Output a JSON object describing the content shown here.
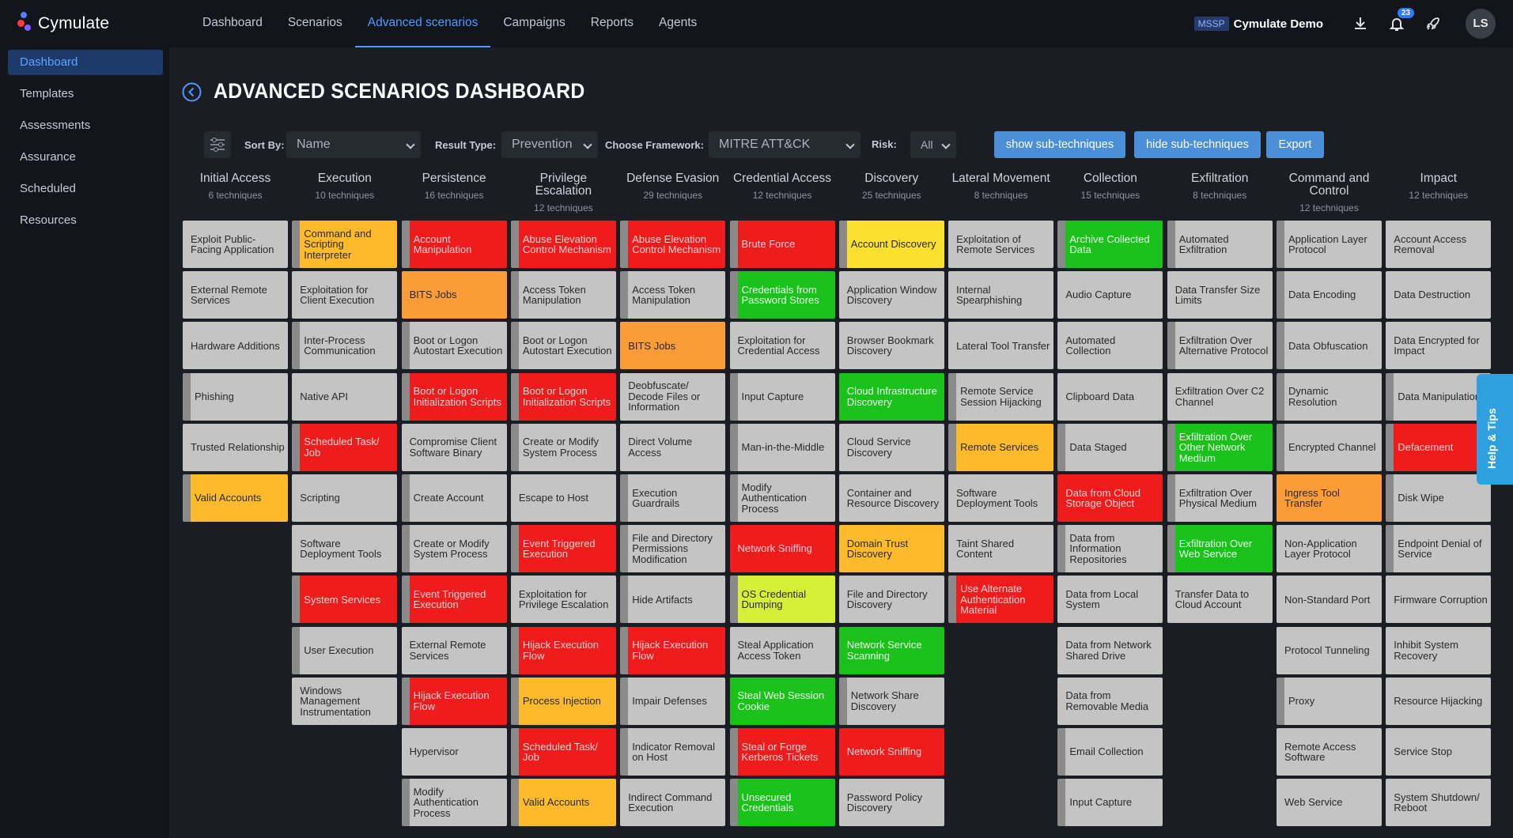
{
  "app": {
    "logo_text": "Cymulate"
  },
  "nav": [
    "Dashboard",
    "Scenarios",
    "Advanced scenarios",
    "Campaigns",
    "Reports",
    "Agents"
  ],
  "nav_active": 2,
  "header": {
    "mssp": "MSSP",
    "account": "Cymulate Demo",
    "notifications": "23",
    "avatar": "LS"
  },
  "sidebar": [
    "Dashboard",
    "Templates",
    "Assessments",
    "Assurance",
    "Scheduled",
    "Resources"
  ],
  "page": {
    "title": "ADVANCED SCENARIOS DASHBOARD"
  },
  "filters": {
    "sort_label": "Sort By:",
    "sort_value": "Name",
    "result_label": "Result Type:",
    "result_value": "Prevention",
    "framework_label": "Choose Framework:",
    "framework_value": "MITRE ATT&CK",
    "risk_label": "Risk:",
    "risk_value": "All",
    "show_sub": "show sub-techniques",
    "hide_sub": "hide sub-techniques",
    "export": "Export"
  },
  "help_tab": "Help & Tips",
  "colors": {
    "red": "#ee1c1c",
    "orange": "#fb9c38",
    "amber": "#fdbb2c",
    "yellow": "#fbe02f",
    "lime": "#d6f03a",
    "green": "#1cc21c",
    "gray": "#c4c4c4",
    "accent": "#4f9bff"
  },
  "columns": [
    {
      "name": "Initial Access",
      "count": "6 techniques",
      "cells": [
        {
          "t": "Exploit Public-Facing Application",
          "c": "gray"
        },
        {
          "t": "External Remote Services",
          "c": "gray"
        },
        {
          "t": "Hardware Additions",
          "c": "gray"
        },
        {
          "t": "Phishing",
          "c": "gray",
          "s": 1
        },
        {
          "t": "Trusted Relationship",
          "c": "gray"
        },
        {
          "t": "Valid Accounts",
          "c": "amber",
          "s": 1
        }
      ]
    },
    {
      "name": "Execution",
      "count": "10 techniques",
      "cells": [
        {
          "t": "Command and Scripting Interpreter",
          "c": "amber",
          "s": 1
        },
        {
          "t": "Exploitation for Client Execution",
          "c": "gray"
        },
        {
          "t": "Inter-Process Communication",
          "c": "gray",
          "s": 1
        },
        {
          "t": "Native API",
          "c": "gray"
        },
        {
          "t": "Scheduled Task/ Job",
          "c": "red",
          "s": 1
        },
        {
          "t": "Scripting",
          "c": "gray"
        },
        {
          "t": "Software Deployment Tools",
          "c": "gray"
        },
        {
          "t": "System Services",
          "c": "red",
          "s": 1
        },
        {
          "t": "User Execution",
          "c": "gray",
          "s": 1
        },
        {
          "t": "Windows Management Instrumentation",
          "c": "gray"
        }
      ]
    },
    {
      "name": "Persistence",
      "count": "16 techniques",
      "cells": [
        {
          "t": "Account Manipulation",
          "c": "red",
          "s": 1
        },
        {
          "t": "BITS Jobs",
          "c": "orange"
        },
        {
          "t": "Boot or Logon Autostart Execution",
          "c": "gray",
          "s": 1
        },
        {
          "t": "Boot or Logon Initialization Scripts",
          "c": "red",
          "s": 1
        },
        {
          "t": "Compromise Client Software Binary",
          "c": "gray"
        },
        {
          "t": "Create Account",
          "c": "gray",
          "s": 1
        },
        {
          "t": "Create or Modify System Process",
          "c": "gray",
          "s": 1
        },
        {
          "t": "Event Triggered Execution",
          "c": "red",
          "s": 1
        },
        {
          "t": "External Remote Services",
          "c": "gray"
        },
        {
          "t": "Hijack Execution Flow",
          "c": "red",
          "s": 1
        },
        {
          "t": "Hypervisor",
          "c": "gray"
        },
        {
          "t": "Modify Authentication Process",
          "c": "gray",
          "s": 1
        }
      ]
    },
    {
      "name": "Privilege Escalation",
      "count": "12 techniques",
      "cells": [
        {
          "t": "Abuse Elevation Control Mechanism",
          "c": "red",
          "s": 1
        },
        {
          "t": "Access Token Manipulation",
          "c": "gray",
          "s": 1
        },
        {
          "t": "Boot or Logon Autostart Execution",
          "c": "gray",
          "s": 1
        },
        {
          "t": "Boot or Logon Initialization Scripts",
          "c": "red",
          "s": 1
        },
        {
          "t": "Create or Modify System Process",
          "c": "gray",
          "s": 1
        },
        {
          "t": "Escape to Host",
          "c": "gray"
        },
        {
          "t": "Event Triggered Execution",
          "c": "red",
          "s": 1
        },
        {
          "t": "Exploitation for Privilege Escalation",
          "c": "gray"
        },
        {
          "t": "Hijack Execution Flow",
          "c": "red",
          "s": 1
        },
        {
          "t": "Process Injection",
          "c": "amber",
          "s": 1
        },
        {
          "t": "Scheduled Task/ Job",
          "c": "red",
          "s": 1
        },
        {
          "t": "Valid Accounts",
          "c": "amber",
          "s": 1
        }
      ]
    },
    {
      "name": "Defense Evasion",
      "count": "29 techniques",
      "cells": [
        {
          "t": "Abuse Elevation Control Mechanism",
          "c": "red",
          "s": 1
        },
        {
          "t": "Access Token Manipulation",
          "c": "gray",
          "s": 1
        },
        {
          "t": "BITS Jobs",
          "c": "orange"
        },
        {
          "t": "Deobfuscate/ Decode Files or Information",
          "c": "gray"
        },
        {
          "t": "Direct Volume Access",
          "c": "gray"
        },
        {
          "t": "Execution Guardrails",
          "c": "gray",
          "s": 1
        },
        {
          "t": "File and Directory Permissions Modification",
          "c": "gray",
          "s": 1
        },
        {
          "t": "Hide Artifacts",
          "c": "gray",
          "s": 1
        },
        {
          "t": "Hijack Execution Flow",
          "c": "red",
          "s": 1
        },
        {
          "t": "Impair Defenses",
          "c": "gray",
          "s": 1
        },
        {
          "t": "Indicator Removal on Host",
          "c": "gray",
          "s": 1
        },
        {
          "t": "Indirect Command Execution",
          "c": "gray"
        }
      ]
    },
    {
      "name": "Credential Access",
      "count": "12 techniques",
      "cells": [
        {
          "t": "Brute Force",
          "c": "red",
          "s": 1
        },
        {
          "t": "Credentials from Password Stores",
          "c": "green",
          "s": 1
        },
        {
          "t": "Exploitation for Credential Access",
          "c": "gray"
        },
        {
          "t": "Input Capture",
          "c": "gray",
          "s": 1
        },
        {
          "t": "Man-in-the-Middle",
          "c": "gray",
          "s": 1
        },
        {
          "t": "Modify Authentication Process",
          "c": "gray",
          "s": 1
        },
        {
          "t": "Network Sniffing",
          "c": "red"
        },
        {
          "t": "OS Credential Dumping",
          "c": "lime",
          "s": 1
        },
        {
          "t": "Steal Application Access Token",
          "c": "gray"
        },
        {
          "t": "Steal Web Session Cookie",
          "c": "green"
        },
        {
          "t": "Steal or Forge Kerberos Tickets",
          "c": "red",
          "s": 1
        },
        {
          "t": "Unsecured Credentials",
          "c": "green",
          "s": 1
        }
      ]
    },
    {
      "name": "Discovery",
      "count": "25 techniques",
      "cells": [
        {
          "t": "Account Discovery",
          "c": "yellow",
          "s": 1
        },
        {
          "t": "Application Window Discovery",
          "c": "gray"
        },
        {
          "t": "Browser Bookmark Discovery",
          "c": "gray"
        },
        {
          "t": "Cloud Infrastructure Discovery",
          "c": "green"
        },
        {
          "t": "Cloud Service Discovery",
          "c": "gray"
        },
        {
          "t": "Container and Resource Discovery",
          "c": "gray"
        },
        {
          "t": "Domain Trust Discovery",
          "c": "amber"
        },
        {
          "t": "File and Directory Discovery",
          "c": "gray"
        },
        {
          "t": "Network Service Scanning",
          "c": "green"
        },
        {
          "t": "Network Share Discovery",
          "c": "gray",
          "s": 1
        },
        {
          "t": "Network Sniffing",
          "c": "red"
        },
        {
          "t": "Password Policy Discovery",
          "c": "gray"
        }
      ]
    },
    {
      "name": "Lateral Movement",
      "count": "8 techniques",
      "cells": [
        {
          "t": "Exploitation of Remote Services",
          "c": "gray"
        },
        {
          "t": "Internal Spearphishing",
          "c": "gray"
        },
        {
          "t": "Lateral Tool Transfer",
          "c": "gray"
        },
        {
          "t": "Remote Service Session Hijacking",
          "c": "gray",
          "s": 1
        },
        {
          "t": "Remote Services",
          "c": "amber",
          "s": 1
        },
        {
          "t": "Software Deployment Tools",
          "c": "gray"
        },
        {
          "t": "Taint Shared Content",
          "c": "gray"
        },
        {
          "t": "Use Alternate Authentication Material",
          "c": "red",
          "s": 1
        }
      ]
    },
    {
      "name": "Collection",
      "count": "15 techniques",
      "cells": [
        {
          "t": "Archive Collected Data",
          "c": "green",
          "s": 1
        },
        {
          "t": "Audio Capture",
          "c": "gray"
        },
        {
          "t": "Automated Collection",
          "c": "gray"
        },
        {
          "t": "Clipboard Data",
          "c": "gray"
        },
        {
          "t": "Data Staged",
          "c": "gray",
          "s": 1
        },
        {
          "t": "Data from Cloud Storage Object",
          "c": "red"
        },
        {
          "t": "Data from Information Repositories",
          "c": "gray",
          "s": 1
        },
        {
          "t": "Data from Local System",
          "c": "gray"
        },
        {
          "t": "Data from Network Shared Drive",
          "c": "gray"
        },
        {
          "t": "Data from Removable Media",
          "c": "gray"
        },
        {
          "t": "Email Collection",
          "c": "gray",
          "s": 1
        },
        {
          "t": "Input Capture",
          "c": "gray",
          "s": 1
        }
      ]
    },
    {
      "name": "Exfiltration",
      "count": "8 techniques",
      "cells": [
        {
          "t": "Automated Exfiltration",
          "c": "gray",
          "s": 1
        },
        {
          "t": "Data Transfer Size Limits",
          "c": "gray"
        },
        {
          "t": "Exfiltration Over Alternative Protocol",
          "c": "gray",
          "s": 1
        },
        {
          "t": "Exfiltration Over C2 Channel",
          "c": "gray"
        },
        {
          "t": "Exfiltration Over Other Network Medium",
          "c": "green",
          "s": 1
        },
        {
          "t": "Exfiltration Over Physical Medium",
          "c": "gray",
          "s": 1
        },
        {
          "t": "Exfiltration Over Web Service",
          "c": "green",
          "s": 1
        },
        {
          "t": "Transfer Data to Cloud Account",
          "c": "gray"
        }
      ]
    },
    {
      "name": "Command and Control",
      "count": "12 techniques",
      "cells": [
        {
          "t": "Application Layer Protocol",
          "c": "gray",
          "s": 1
        },
        {
          "t": "Data Encoding",
          "c": "gray",
          "s": 1
        },
        {
          "t": "Data Obfuscation",
          "c": "gray",
          "s": 1
        },
        {
          "t": "Dynamic Resolution",
          "c": "gray",
          "s": 1
        },
        {
          "t": "Encrypted Channel",
          "c": "gray",
          "s": 1
        },
        {
          "t": "Ingress Tool Transfer",
          "c": "orange"
        },
        {
          "t": "Non-Application Layer Protocol",
          "c": "gray"
        },
        {
          "t": "Non-Standard Port",
          "c": "gray"
        },
        {
          "t": "Protocol Tunneling",
          "c": "gray"
        },
        {
          "t": "Proxy",
          "c": "gray",
          "s": 1
        },
        {
          "t": "Remote Access Software",
          "c": "gray"
        },
        {
          "t": "Web Service",
          "c": "gray"
        }
      ]
    },
    {
      "name": "Impact",
      "count": "12 techniques",
      "cells": [
        {
          "t": "Account Access Removal",
          "c": "gray"
        },
        {
          "t": "Data Destruction",
          "c": "gray"
        },
        {
          "t": "Data Encrypted for Impact",
          "c": "gray"
        },
        {
          "t": "Data Manipulation",
          "c": "gray",
          "s": 1
        },
        {
          "t": "Defacement",
          "c": "red",
          "s": 1
        },
        {
          "t": "Disk Wipe",
          "c": "gray",
          "s": 1
        },
        {
          "t": "Endpoint Denial of Service",
          "c": "gray",
          "s": 1
        },
        {
          "t": "Firmware Corruption",
          "c": "gray"
        },
        {
          "t": "Inhibit System Recovery",
          "c": "gray"
        },
        {
          "t": "Resource Hijacking",
          "c": "gray"
        },
        {
          "t": "Service Stop",
          "c": "gray"
        },
        {
          "t": "System Shutdown/ Reboot",
          "c": "gray"
        }
      ]
    }
  ]
}
